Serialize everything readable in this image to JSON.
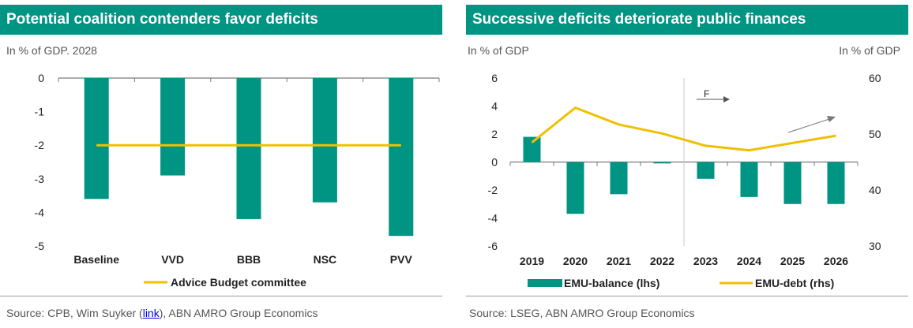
{
  "left": {
    "title": "Potential coalition contenders favor deficits",
    "subtitle": "In % of GDP. 2028",
    "source_prefix": "Source:  CPB, Wim Suyker (",
    "source_link": "link",
    "source_suffix": "), ABN AMRO Group Economics"
  },
  "right": {
    "title": "Successive deficits deteriorate public finances",
    "subtitle_left": "In % of GDP",
    "subtitle_right": "In % of GDP",
    "forecast_label": "F",
    "source": "Source: LSEG, ABN AMRO Group Economics"
  },
  "chart_data": [
    {
      "type": "bar",
      "categories": [
        "Baseline",
        "VVD",
        "BBB",
        "NSC",
        "PVV"
      ],
      "series": [
        {
          "name": "",
          "values": [
            -3.6,
            -2.9,
            -4.2,
            -3.7,
            -4.7
          ]
        },
        {
          "name": "Advice Budget committee",
          "type": "line",
          "values": [
            -2,
            -2,
            -2,
            -2,
            -2
          ]
        }
      ],
      "ylim": [
        -5,
        0
      ],
      "yticks": [
        0,
        -1,
        -2,
        -3,
        -4,
        -5
      ],
      "legend": "bottom",
      "colors": {
        "bars": "#009483",
        "line": "#f0c000"
      }
    },
    {
      "type": "bar",
      "categories": [
        "2019",
        "2020",
        "2021",
        "2022",
        "2023",
        "2024",
        "2025",
        "2026"
      ],
      "series": [
        {
          "name": "EMU-balance (lhs)",
          "axis": "left",
          "values": [
            1.8,
            -3.7,
            -2.3,
            -0.1,
            -1.2,
            -2.5,
            -3.0,
            -3.0
          ]
        },
        {
          "name": "EMU-debt (rhs)",
          "type": "line",
          "axis": "right",
          "values": [
            48.5,
            54.7,
            51.7,
            50.1,
            47.9,
            47.1,
            48.4,
            49.7
          ]
        }
      ],
      "ylim_left": [
        -6,
        6
      ],
      "yticks_left": [
        6,
        4,
        2,
        0,
        -2,
        -4,
        -6
      ],
      "ylim_right": [
        30,
        60
      ],
      "yticks_right": [
        60,
        50,
        40,
        30
      ],
      "forecast_from": "2023",
      "legend": "bottom",
      "colors": {
        "bars": "#009483",
        "line": "#f0c000"
      }
    }
  ]
}
